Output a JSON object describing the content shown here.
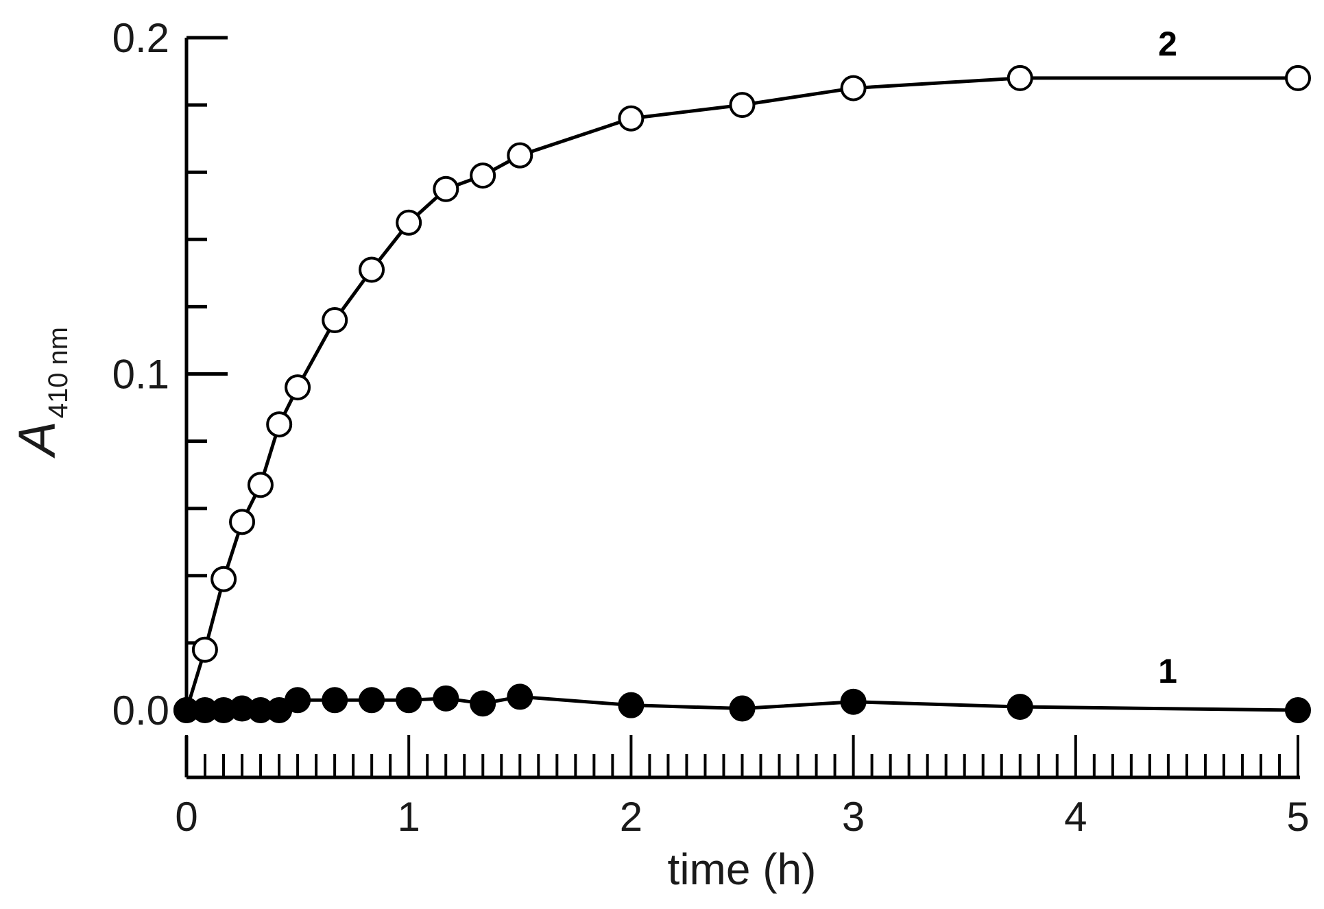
{
  "chart_data": {
    "type": "line",
    "title": "",
    "xlabel": "time (h)",
    "ylabel": "A",
    "ylabel_subscript": "410 nm",
    "xlim": [
      0,
      5
    ],
    "ylim": [
      0,
      0.2
    ],
    "x_ticks": [
      "0",
      "1",
      "2",
      "3",
      "4",
      "5"
    ],
    "y_ticks": [
      "0.0",
      "0.1",
      "0.2"
    ],
    "grid": false,
    "series": [
      {
        "name": "2",
        "marker": "open-circle",
        "x": [
          0,
          0.083,
          0.167,
          0.25,
          0.333,
          0.417,
          0.5,
          0.667,
          0.833,
          1.0,
          1.167,
          1.333,
          1.5,
          2.0,
          2.5,
          3.0,
          3.75,
          5.0
        ],
        "y": [
          0.0,
          0.018,
          0.039,
          0.056,
          0.067,
          0.085,
          0.096,
          0.116,
          0.131,
          0.145,
          0.155,
          0.159,
          0.165,
          0.176,
          0.18,
          0.185,
          0.188,
          0.188
        ]
      },
      {
        "name": "1",
        "marker": "filled-circle",
        "x": [
          0,
          0.083,
          0.167,
          0.25,
          0.333,
          0.417,
          0.5,
          0.667,
          0.833,
          1.0,
          1.167,
          1.333,
          1.5,
          2.0,
          2.5,
          3.0,
          3.75,
          5.0
        ],
        "y": [
          0.0,
          0.0,
          0.0,
          0.0005,
          0.0,
          0.0,
          0.003,
          0.003,
          0.003,
          0.003,
          0.0035,
          0.002,
          0.004,
          0.0015,
          0.0005,
          0.0025,
          0.001,
          0.0
        ]
      }
    ],
    "colors": {
      "line": "#000000",
      "open_fill": "#ffffff",
      "filled_fill": "#000000"
    }
  }
}
